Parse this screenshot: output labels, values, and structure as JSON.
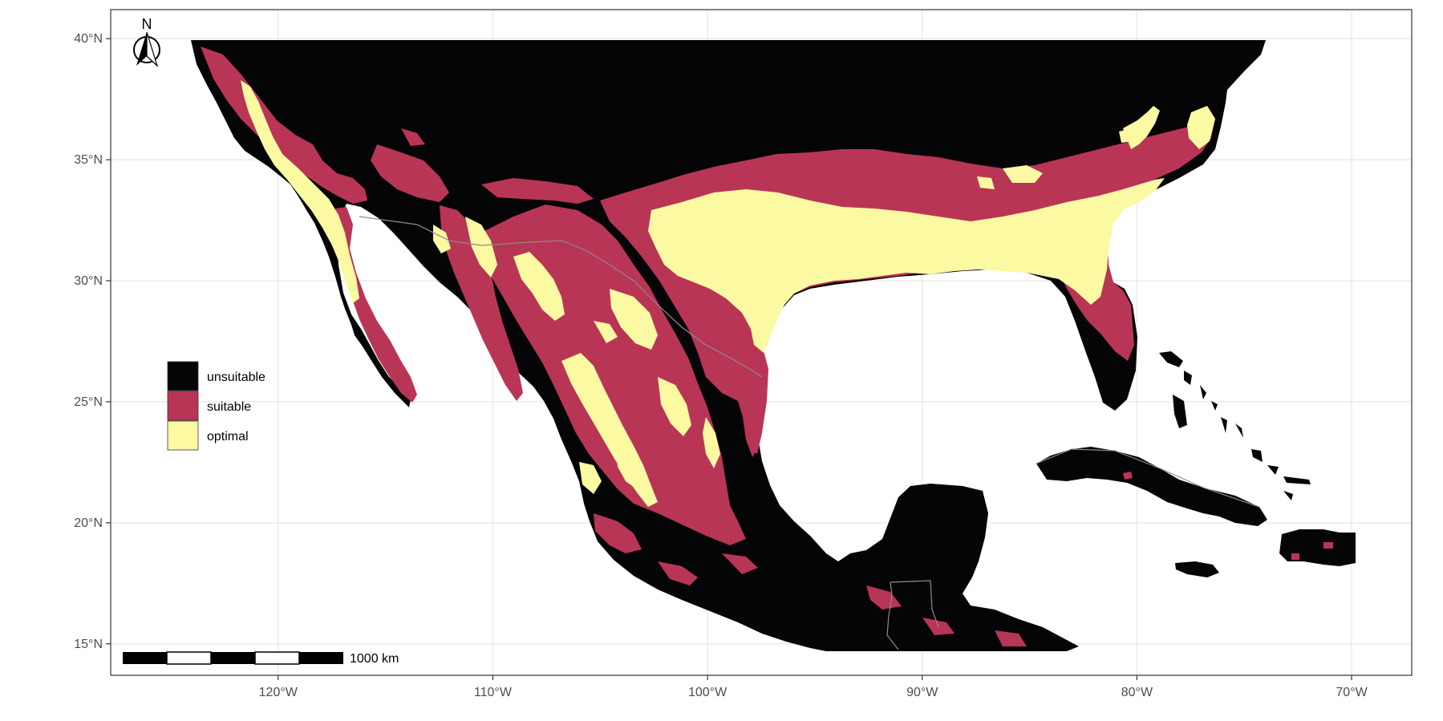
{
  "map": {
    "x_axis_labels": [
      "120°W",
      "110°W",
      "100°W",
      "90°W",
      "80°W",
      "70°W"
    ],
    "y_axis_labels": [
      "40°N",
      "35°N",
      "30°N",
      "25°N",
      "20°N",
      "15°N"
    ],
    "lon_ticks": [
      -120,
      -110,
      -100,
      -90,
      -80,
      -70
    ],
    "lat_ticks": [
      40,
      35,
      30,
      25,
      20,
      15
    ],
    "extent": {
      "lon_min": -127.8,
      "lon_max": -67.2,
      "lat_min": 13.7,
      "lat_max": 41.2
    },
    "grid": true,
    "grid_color": "#ebebeb",
    "panel_border_color": "#333333",
    "country_border_color": "#8c8c8c"
  },
  "legend": {
    "placement": "left",
    "items": [
      {
        "label": "unsuitable",
        "color": "#050508"
      },
      {
        "label": "suitable",
        "color": "#b93556"
      },
      {
        "label": "optimal",
        "color": "#fbf9a2"
      }
    ]
  },
  "scale_bar": {
    "label": "1000 km",
    "segments": 5
  },
  "north_arrow": {
    "label": "N"
  },
  "colors": {
    "unsuitable": "#050508",
    "suitable": "#b93556",
    "optimal": "#fbf9a2"
  }
}
